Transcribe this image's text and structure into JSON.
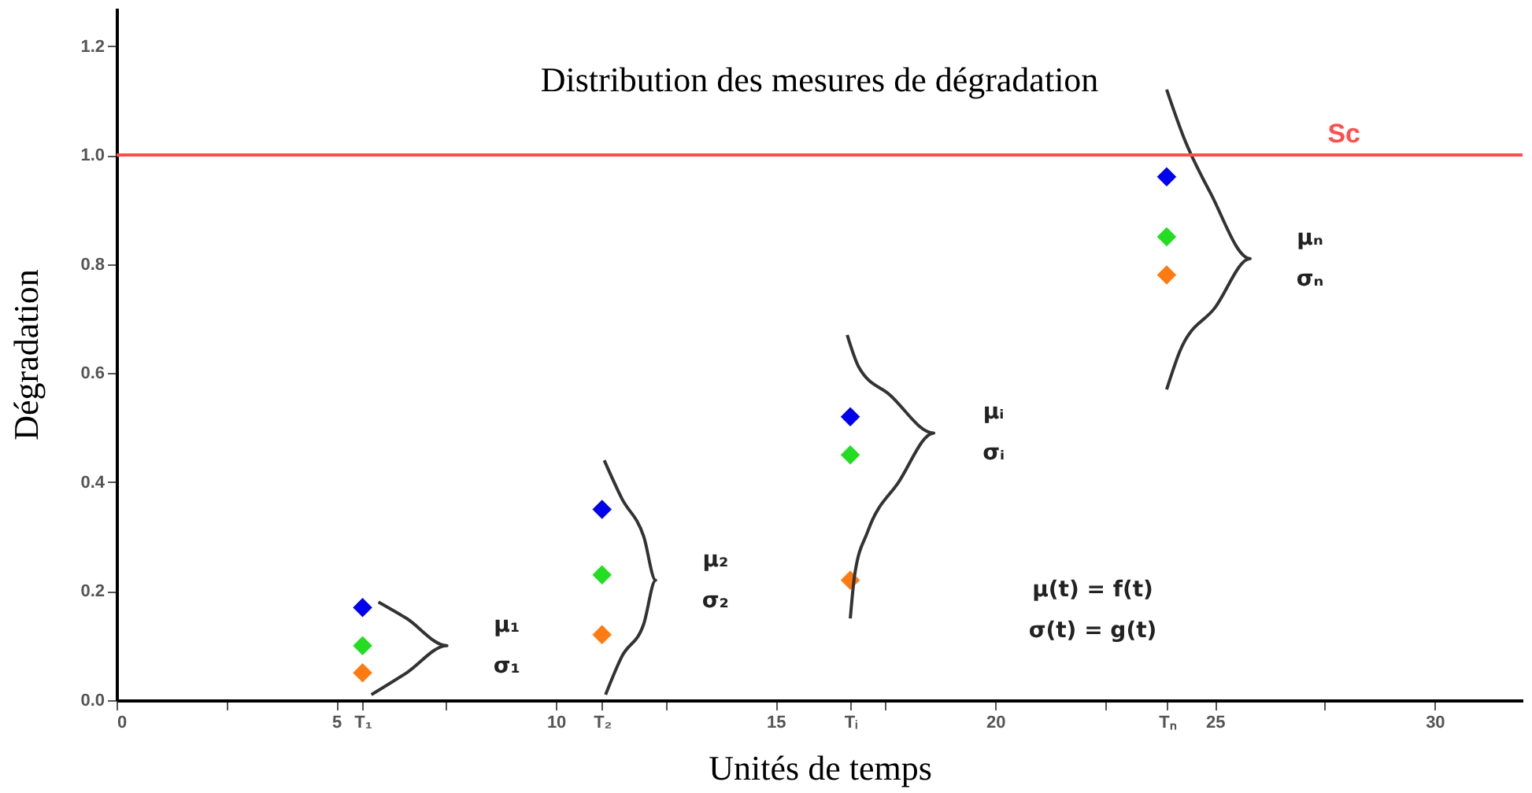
{
  "chart_data": {
    "type": "scatter",
    "title": "Distribution des mesures de dégradation",
    "xlabel": "Unités de temps",
    "ylabel": "Dégradation",
    "xlim": [
      0,
      32
    ],
    "ylim": [
      0,
      1.27
    ],
    "xticks": [
      0,
      5,
      10,
      15,
      20,
      25,
      30,
      {
        "value": 2.5,
        "label": null
      },
      {
        "value": 7.5,
        "label": null
      },
      {
        "value": 12.5,
        "label": null
      },
      {
        "value": 17.5,
        "label": null
      },
      {
        "value": 22.5,
        "label": null
      },
      {
        "value": 27.5,
        "label": null
      },
      {
        "value": 5.6,
        "label": "T₁"
      },
      {
        "value": 11.05,
        "label": "T₂"
      },
      {
        "value": 16.7,
        "label": "Tᵢ"
      },
      {
        "value": 23.9,
        "label": "Tₙ"
      }
    ],
    "yticks": [
      {
        "value": 0,
        "label": "0.0"
      },
      {
        "value": 0.2,
        "label": "0.2"
      },
      {
        "value": 0.4,
        "label": "0.4"
      },
      {
        "value": 0.6,
        "label": "0.6"
      },
      {
        "value": 0.8,
        "label": "0.8"
      },
      {
        "value": 1.0,
        "label": "1.0"
      },
      {
        "value": 1.2,
        "label": "1.2"
      }
    ],
    "x": [
      5.6,
      11.05,
      16.7,
      23.9
    ],
    "marker": "diamond",
    "grid": false,
    "series": [
      {
        "color": "#0000ee",
        "values": [
          0.17,
          0.35,
          0.52,
          0.96
        ]
      },
      {
        "color": "#22dd22",
        "values": [
          0.1,
          0.23,
          0.45,
          0.85
        ]
      },
      {
        "color": "#ff7a10",
        "values": [
          0.05,
          0.12,
          0.22,
          0.78
        ]
      },
      {
        "type": "line",
        "marker": "none",
        "color": "#333333",
        "x": [
          5.96,
          6.6,
          7.52,
          6.6,
          5.8
        ],
        "values": [
          0.18,
          0.15,
          0.1,
          0.05,
          0.01
        ]
      },
      {
        "type": "line",
        "marker": "none",
        "color": "#333333",
        "x": [
          11.1,
          11.5,
          12.0,
          12.27,
          12.0,
          11.5,
          11.13
        ],
        "values": [
          0.44,
          0.37,
          0.3,
          0.22,
          0.14,
          0.08,
          0.01
        ]
      },
      {
        "type": "line",
        "marker": "none",
        "color": "#333333",
        "x": [
          16.63,
          16.9,
          17.6,
          18.6,
          17.8,
          17.1,
          16.8,
          16.7
        ],
        "values": [
          0.67,
          0.61,
          0.56,
          0.49,
          0.4,
          0.31,
          0.23,
          0.15
        ]
      },
      {
        "type": "line",
        "marker": "none",
        "color": "#333333",
        "x": [
          23.9,
          24.3,
          24.9,
          25.8,
          25.0,
          24.2,
          23.9
        ],
        "values": [
          1.12,
          1.03,
          0.93,
          0.81,
          0.72,
          0.64,
          0.57
        ]
      }
    ],
    "ref_lines": [
      {
        "axis": "y",
        "value": 1.0,
        "label": "Sc",
        "color": "#ff4d4d"
      }
    ],
    "annotations": [
      "μ₁",
      "σ₁",
      "μ₂",
      "σ₂",
      "μᵢ",
      "σᵢ",
      "μₙ",
      "σₙ",
      "μ(t) = f(t)",
      "σ(t) = g(t)"
    ]
  }
}
